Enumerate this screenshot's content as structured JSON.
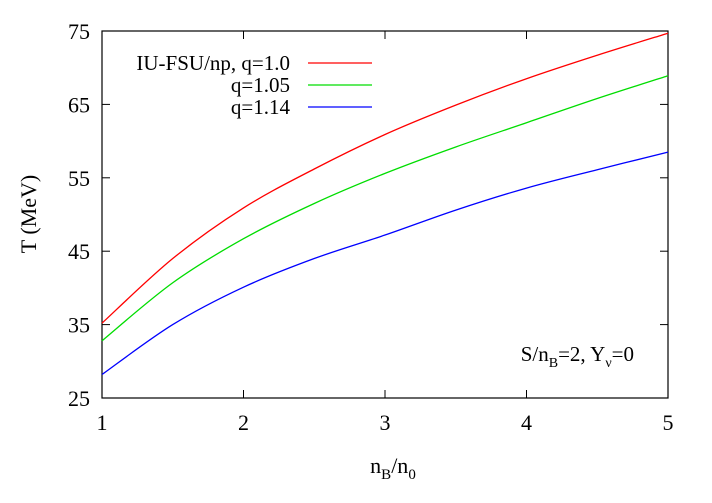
{
  "chart_data": {
    "type": "line",
    "title": "",
    "xlabel": {
      "base": "n",
      "sub1": "B",
      "sep": "/n",
      "sub2": "0"
    },
    "ylabel": "T (MeV)",
    "xlim": [
      1,
      5
    ],
    "ylim": [
      25,
      75
    ],
    "xticks": [
      1,
      2,
      3,
      4,
      5
    ],
    "yticks": [
      25,
      35,
      45,
      55,
      65,
      75
    ],
    "grid": false,
    "legend_position": "top-left",
    "annotation": {
      "p1": "S/n",
      "p1_sub": "B",
      "p2": "=2, Y",
      "p2_sub": "ν",
      "p3": "=0"
    },
    "x": [
      1.0,
      1.5,
      2.0,
      2.5,
      3.0,
      3.5,
      4.0,
      4.5,
      5.0
    ],
    "series": [
      {
        "name": "IU-FSU/np, q=1.0",
        "color": "#ff0000",
        "values": [
          35.2,
          44.0,
          50.9,
          56.2,
          60.9,
          64.9,
          68.5,
          71.7,
          74.7
        ]
      },
      {
        "name": "q=1.05",
        "color": "#00dd00",
        "values": [
          32.8,
          40.7,
          46.7,
          51.5,
          55.6,
          59.2,
          62.5,
          65.8,
          68.9
        ]
      },
      {
        "name": "q=1.14",
        "color": "#0000ff",
        "values": [
          28.2,
          35.0,
          40.1,
          44.0,
          47.2,
          50.6,
          53.6,
          56.1,
          58.5
        ]
      }
    ]
  }
}
